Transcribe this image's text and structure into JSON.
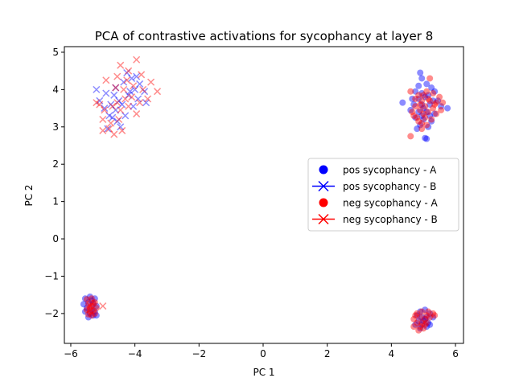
{
  "chart_data": {
    "type": "scatter",
    "title": "PCA of contrastive activations for sycophancy at layer 8",
    "xlabel": "PC 1",
    "ylabel": "PC 2",
    "xlim": [
      -6.2,
      6.25
    ],
    "ylim": [
      -2.8,
      5.15
    ],
    "xticks": [
      {
        "v": -6,
        "label": "−6"
      },
      {
        "v": -4,
        "label": "−4"
      },
      {
        "v": -2,
        "label": "−2"
      },
      {
        "v": 0,
        "label": "0"
      },
      {
        "v": 2,
        "label": "2"
      },
      {
        "v": 4,
        "label": "4"
      },
      {
        "v": 6,
        "label": "6"
      }
    ],
    "yticks": [
      {
        "v": -2,
        "label": "−2"
      },
      {
        "v": -1,
        "label": "−1"
      },
      {
        "v": 0,
        "label": "0"
      },
      {
        "v": 1,
        "label": "1"
      },
      {
        "v": 2,
        "label": "2"
      },
      {
        "v": 3,
        "label": "3"
      },
      {
        "v": 4,
        "label": "4"
      },
      {
        "v": 5,
        "label": "5"
      }
    ],
    "grid": false,
    "legend_position": "center-right",
    "colors": {
      "pos": "#0000ff",
      "neg": "#ff0000"
    },
    "series": [
      {
        "name": "pos sycophancy - A",
        "marker": "circle",
        "color": "#0000ff",
        "points": [
          [
            4.9,
            4.45
          ],
          [
            4.95,
            4.3
          ],
          [
            5.1,
            4.15
          ],
          [
            4.85,
            4.1
          ],
          [
            5.25,
            4.05
          ],
          [
            5.35,
            3.95
          ],
          [
            4.75,
            3.95
          ],
          [
            4.95,
            3.9
          ],
          [
            5.15,
            3.85
          ],
          [
            5.05,
            3.8
          ],
          [
            4.65,
            3.75
          ],
          [
            4.85,
            3.75
          ],
          [
            5.3,
            3.7
          ],
          [
            5.45,
            3.7
          ],
          [
            4.35,
            3.65
          ],
          [
            4.7,
            3.6
          ],
          [
            4.95,
            3.6
          ],
          [
            5.2,
            3.6
          ],
          [
            5.55,
            3.55
          ],
          [
            5.75,
            3.5
          ],
          [
            4.6,
            3.45
          ],
          [
            4.85,
            3.4
          ],
          [
            5.1,
            3.4
          ],
          [
            5.35,
            3.35
          ],
          [
            4.75,
            3.25
          ],
          [
            5.0,
            3.2
          ],
          [
            5.25,
            3.15
          ],
          [
            4.9,
            3.05
          ],
          [
            5.15,
            3.0
          ],
          [
            4.8,
            2.95
          ],
          [
            5.05,
            2.7
          ],
          [
            5.1,
            2.68
          ],
          [
            5.0,
            3.5
          ],
          [
            5.2,
            3.3
          ],
          [
            4.95,
            3.3
          ],
          [
            -5.55,
            -1.6
          ],
          [
            -5.4,
            -1.55
          ],
          [
            -5.25,
            -1.6
          ],
          [
            -5.6,
            -1.75
          ],
          [
            -5.45,
            -1.7
          ],
          [
            -5.3,
            -1.75
          ],
          [
            -5.2,
            -1.8
          ],
          [
            -5.5,
            -1.85
          ],
          [
            -5.35,
            -1.9
          ],
          [
            -5.55,
            -1.95
          ],
          [
            -5.25,
            -1.95
          ],
          [
            -5.4,
            -2.0
          ],
          [
            -5.3,
            -2.05
          ],
          [
            -5.45,
            -2.1
          ],
          [
            -5.2,
            -2.05
          ],
          [
            -5.35,
            -1.65
          ],
          [
            4.9,
            -1.95
          ],
          [
            5.05,
            -1.9
          ],
          [
            5.2,
            -2.0
          ],
          [
            4.8,
            -2.05
          ],
          [
            4.95,
            -2.1
          ],
          [
            5.1,
            -2.1
          ],
          [
            5.3,
            -2.1
          ],
          [
            4.85,
            -2.2
          ],
          [
            5.0,
            -2.2
          ],
          [
            5.15,
            -2.25
          ],
          [
            4.75,
            -2.3
          ],
          [
            4.95,
            -2.3
          ],
          [
            5.1,
            -2.35
          ],
          [
            5.2,
            -2.3
          ],
          [
            4.9,
            -2.4
          ],
          [
            5.05,
            -2.15
          ]
        ]
      },
      {
        "name": "pos sycophancy - B",
        "marker": "x",
        "color": "#0000ff",
        "points": [
          [
            -5.2,
            4.0
          ],
          [
            -4.9,
            3.9
          ],
          [
            -4.6,
            4.05
          ],
          [
            -4.35,
            4.2
          ],
          [
            -4.1,
            4.3
          ],
          [
            -3.85,
            4.15
          ],
          [
            -3.7,
            3.95
          ],
          [
            -3.65,
            3.65
          ],
          [
            -3.9,
            3.75
          ],
          [
            -4.2,
            3.85
          ],
          [
            -4.5,
            3.7
          ],
          [
            -4.75,
            3.6
          ],
          [
            -4.6,
            3.45
          ],
          [
            -4.3,
            3.3
          ],
          [
            -4.05,
            3.55
          ],
          [
            -4.95,
            3.5
          ],
          [
            -5.1,
            3.7
          ],
          [
            -4.8,
            3.3
          ],
          [
            -4.55,
            3.15
          ],
          [
            -4.45,
            3.0
          ],
          [
            -4.85,
            2.95
          ],
          [
            -4.0,
            4.0
          ],
          [
            -4.25,
            4.45
          ],
          [
            -4.65,
            3.85
          ],
          [
            -4.4,
            3.6
          ],
          [
            -4.15,
            3.95
          ],
          [
            -3.95,
            4.35
          ],
          [
            -4.7,
            3.25
          ]
        ]
      },
      {
        "name": "neg sycophancy - A",
        "marker": "circle",
        "color": "#ff0000",
        "points": [
          [
            4.6,
            3.95
          ],
          [
            4.85,
            3.85
          ],
          [
            5.1,
            3.95
          ],
          [
            5.3,
            3.9
          ],
          [
            5.5,
            3.8
          ],
          [
            5.4,
            3.65
          ],
          [
            5.2,
            3.7
          ],
          [
            4.95,
            3.7
          ],
          [
            4.75,
            3.55
          ],
          [
            5.05,
            3.55
          ],
          [
            5.3,
            3.5
          ],
          [
            5.55,
            3.45
          ],
          [
            4.65,
            3.4
          ],
          [
            4.9,
            3.45
          ],
          [
            5.15,
            3.4
          ],
          [
            5.4,
            3.35
          ],
          [
            4.8,
            3.25
          ],
          [
            5.05,
            3.25
          ],
          [
            5.25,
            3.2
          ],
          [
            4.95,
            3.1
          ],
          [
            5.1,
            3.05
          ],
          [
            4.85,
            3.15
          ],
          [
            4.95,
            2.95
          ],
          [
            4.7,
            3.3
          ],
          [
            5.2,
            4.3
          ],
          [
            5.0,
            3.35
          ],
          [
            5.35,
            3.6
          ],
          [
            4.75,
            3.75
          ],
          [
            4.6,
            2.75
          ],
          [
            5.6,
            3.65
          ],
          [
            4.9,
            3.6
          ],
          [
            5.15,
            3.75
          ],
          [
            5.0,
            3.85
          ],
          [
            -5.5,
            -1.62
          ],
          [
            -5.35,
            -1.6
          ],
          [
            -5.25,
            -1.7
          ],
          [
            -5.45,
            -1.75
          ],
          [
            -5.35,
            -1.8
          ],
          [
            -5.2,
            -1.85
          ],
          [
            -5.5,
            -1.9
          ],
          [
            -5.4,
            -1.95
          ],
          [
            -5.3,
            -1.92
          ],
          [
            -5.45,
            -2.02
          ],
          [
            -5.35,
            -2.05
          ],
          [
            -5.25,
            -2.0
          ],
          [
            -5.4,
            -1.85
          ],
          [
            -5.3,
            -1.72
          ],
          [
            4.8,
            -2.0
          ],
          [
            4.95,
            -1.95
          ],
          [
            5.1,
            -2.05
          ],
          [
            5.3,
            -2.0
          ],
          [
            4.7,
            -2.15
          ],
          [
            4.9,
            -2.1
          ],
          [
            5.05,
            -2.15
          ],
          [
            5.2,
            -2.1
          ],
          [
            5.35,
            -2.05
          ],
          [
            4.8,
            -2.25
          ],
          [
            4.95,
            -2.25
          ],
          [
            5.1,
            -2.25
          ],
          [
            4.7,
            -2.35
          ],
          [
            4.9,
            -2.35
          ],
          [
            5.05,
            -2.3
          ],
          [
            4.85,
            -2.45
          ],
          [
            5.0,
            -2.4
          ],
          [
            4.75,
            -2.05
          ],
          [
            5.15,
            -1.95
          ]
        ]
      },
      {
        "name": "neg sycophancy - B",
        "marker": "x",
        "color": "#ff0000",
        "points": [
          [
            -4.45,
            4.65
          ],
          [
            -3.95,
            4.8
          ],
          [
            -4.2,
            4.5
          ],
          [
            -4.55,
            4.35
          ],
          [
            -3.8,
            4.4
          ],
          [
            -3.5,
            4.2
          ],
          [
            -3.3,
            3.95
          ],
          [
            -3.6,
            3.75
          ],
          [
            -3.85,
            3.65
          ],
          [
            -4.1,
            3.8
          ],
          [
            -4.35,
            4.0
          ],
          [
            -4.6,
            4.05
          ],
          [
            -4.3,
            3.75
          ],
          [
            -4.05,
            4.1
          ],
          [
            -3.75,
            4.0
          ],
          [
            -4.9,
            4.25
          ],
          [
            -5.2,
            3.65
          ],
          [
            -4.95,
            3.45
          ],
          [
            -4.7,
            3.55
          ],
          [
            -5.0,
            3.2
          ],
          [
            -4.75,
            3.1
          ],
          [
            -4.5,
            3.2
          ],
          [
            -4.8,
            2.95
          ],
          [
            -4.65,
            2.8
          ],
          [
            -4.4,
            2.9
          ],
          [
            -5.0,
            2.9
          ],
          [
            -4.2,
            3.55
          ],
          [
            -3.95,
            3.35
          ],
          [
            -4.45,
            3.45
          ],
          [
            -5.1,
            3.6
          ],
          [
            -4.25,
            4.25
          ],
          [
            -4.55,
            3.65
          ],
          [
            -5.4,
            -1.8
          ],
          [
            -5.0,
            -1.8
          ]
        ]
      }
    ]
  }
}
